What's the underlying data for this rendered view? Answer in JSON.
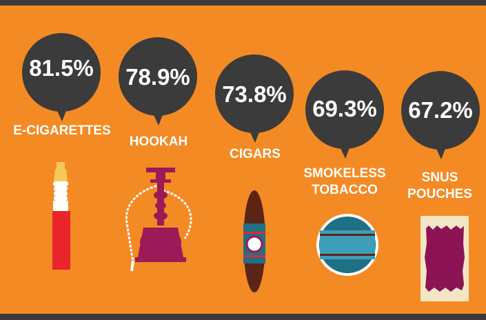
{
  "colors": {
    "background": "#f48a24",
    "bubble": "#3b3b3b",
    "text": "#ffffff"
  },
  "items": [
    {
      "value": "81.5%",
      "label_lines": [
        "E-CIGARETTES"
      ],
      "icon": "e-cigarette-icon"
    },
    {
      "value": "78.9%",
      "label_lines": [
        "HOOKAH"
      ],
      "icon": "hookah-icon"
    },
    {
      "value": "73.8%",
      "label_lines": [
        "CIGARS"
      ],
      "icon": "cigar-icon"
    },
    {
      "value": "69.3%",
      "label_lines": [
        "SMOKELESS",
        "TOBACCO"
      ],
      "icon": "smokeless-tobacco-tin-icon"
    },
    {
      "value": "67.2%",
      "label_lines": [
        "SNUS",
        "POUCHES"
      ],
      "icon": "snus-pouch-icon"
    }
  ]
}
